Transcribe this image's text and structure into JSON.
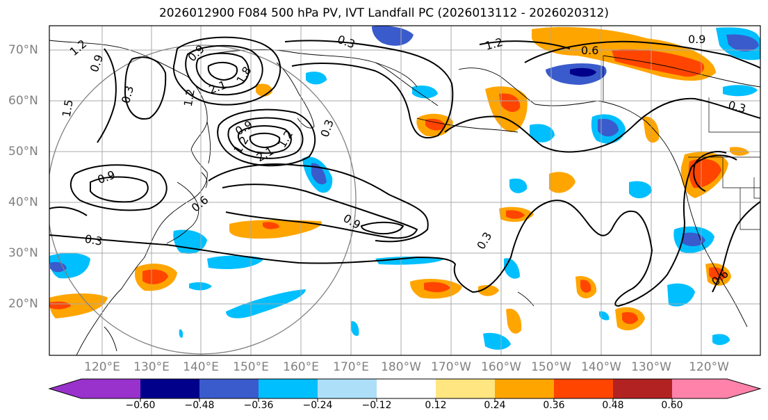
{
  "title": "2026012900 F084 500 hPa PV, IVT Landfall PC (2026013112 - 2026020312)",
  "map": {
    "lat_labels": [
      "70°N",
      "60°N",
      "50°N",
      "40°N",
      "30°N",
      "20°N"
    ],
    "lon_labels": [
      "120°E",
      "130°E",
      "140°E",
      "150°E",
      "160°E",
      "170°E",
      "180°W",
      "170°W",
      "160°W",
      "150°W",
      "140°W",
      "130°W",
      "120°W"
    ],
    "contour_labels": [
      "1.2",
      "0.9",
      "0.3",
      "1.5",
      "1.2",
      "2.1",
      "1.8",
      "0.9",
      "1.2",
      "0.3",
      "0.9",
      "1.2",
      "2.1",
      "0.9",
      "0.6",
      "0.3",
      "0.9",
      "0.3",
      "1.2",
      "0.6",
      "0.9",
      "0.3",
      "0.3",
      "0.6"
    ]
  },
  "colorbar": {
    "tick_labels": [
      "−0.60",
      "−0.48",
      "−0.36",
      "−0.24",
      "−0.12",
      "0.12",
      "0.24",
      "0.36",
      "0.48",
      "0.60"
    ],
    "colors": [
      "#9932CC",
      "#00008B",
      "#3A5BCC",
      "#00BFFF",
      "#ADDFF8",
      "#FFFFFF",
      "#FFE680",
      "#FFA500",
      "#FF4500",
      "#B22222",
      "#FF82AB"
    ]
  }
}
